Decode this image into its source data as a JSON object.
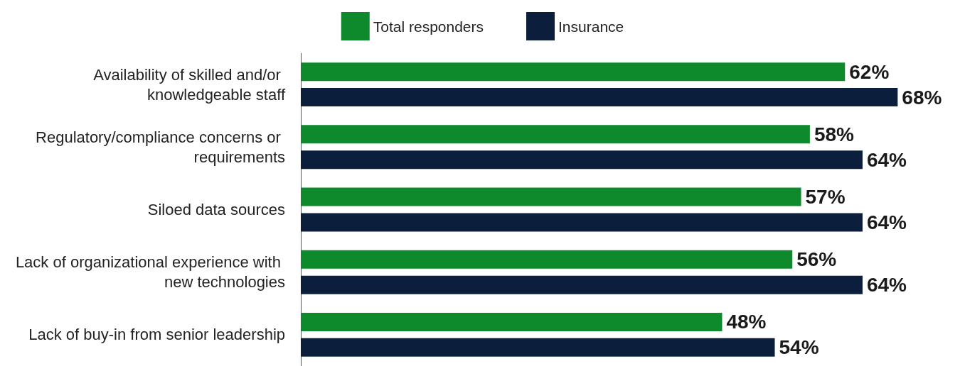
{
  "chart_data": {
    "type": "bar",
    "orientation": "horizontal",
    "legend": "top",
    "categories": [
      "Availability of skilled and/or knowledgeable staff",
      "Regulatory/compliance concerns or requirements",
      "Siloed data sources",
      "Lack of organizational experience with new technologies",
      "Lack of buy-in from senior leadership"
    ],
    "series": [
      {
        "name": "Total responders",
        "color": "#0e8a2c",
        "values": [
          62,
          58,
          57,
          56,
          48
        ],
        "value_labels": [
          "62%",
          "58%",
          "57%",
          "56%",
          "48%"
        ]
      },
      {
        "name": "Insurance",
        "color": "#0b1f3d",
        "values": [
          68,
          64,
          64,
          64,
          54
        ],
        "value_labels": [
          "68%",
          "64%",
          "64%",
          "64%",
          "54%"
        ]
      }
    ]
  }
}
